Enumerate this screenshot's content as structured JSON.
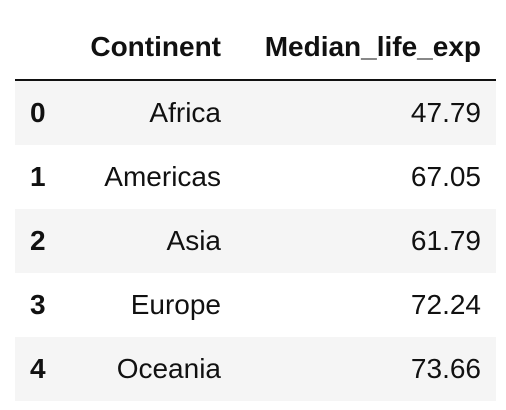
{
  "table": {
    "columns": [
      "",
      "Continent",
      "Median_life_exp"
    ],
    "rows": [
      {
        "index": "0",
        "continent": "Africa",
        "median_life_exp": "47.79"
      },
      {
        "index": "1",
        "continent": "Americas",
        "median_life_exp": "67.05"
      },
      {
        "index": "2",
        "continent": "Asia",
        "median_life_exp": "61.79"
      },
      {
        "index": "3",
        "continent": "Europe",
        "median_life_exp": "72.24"
      },
      {
        "index": "4",
        "continent": "Oceania",
        "median_life_exp": "73.66"
      }
    ]
  },
  "colors": {
    "stripe": "#f5f5f5",
    "text": "#111111",
    "header_rule": "#111111"
  }
}
